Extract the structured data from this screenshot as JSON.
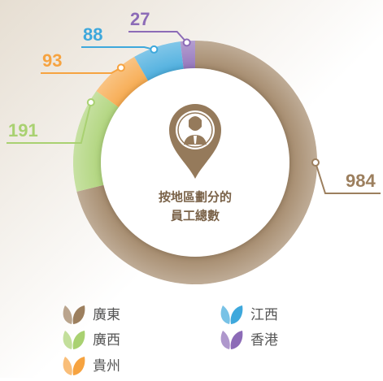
{
  "chart_data": {
    "type": "pie",
    "center_label": [
      "按地區劃分的",
      "員工總數"
    ],
    "categories": [
      "廣東",
      "廣西",
      "貴州",
      "江西",
      "香港"
    ],
    "values": [
      984,
      191,
      93,
      88,
      27
    ],
    "colors": [
      "#9c7f5e",
      "#a9d171",
      "#f6a340",
      "#3ea8dc",
      "#8c6bb7"
    ]
  }
}
